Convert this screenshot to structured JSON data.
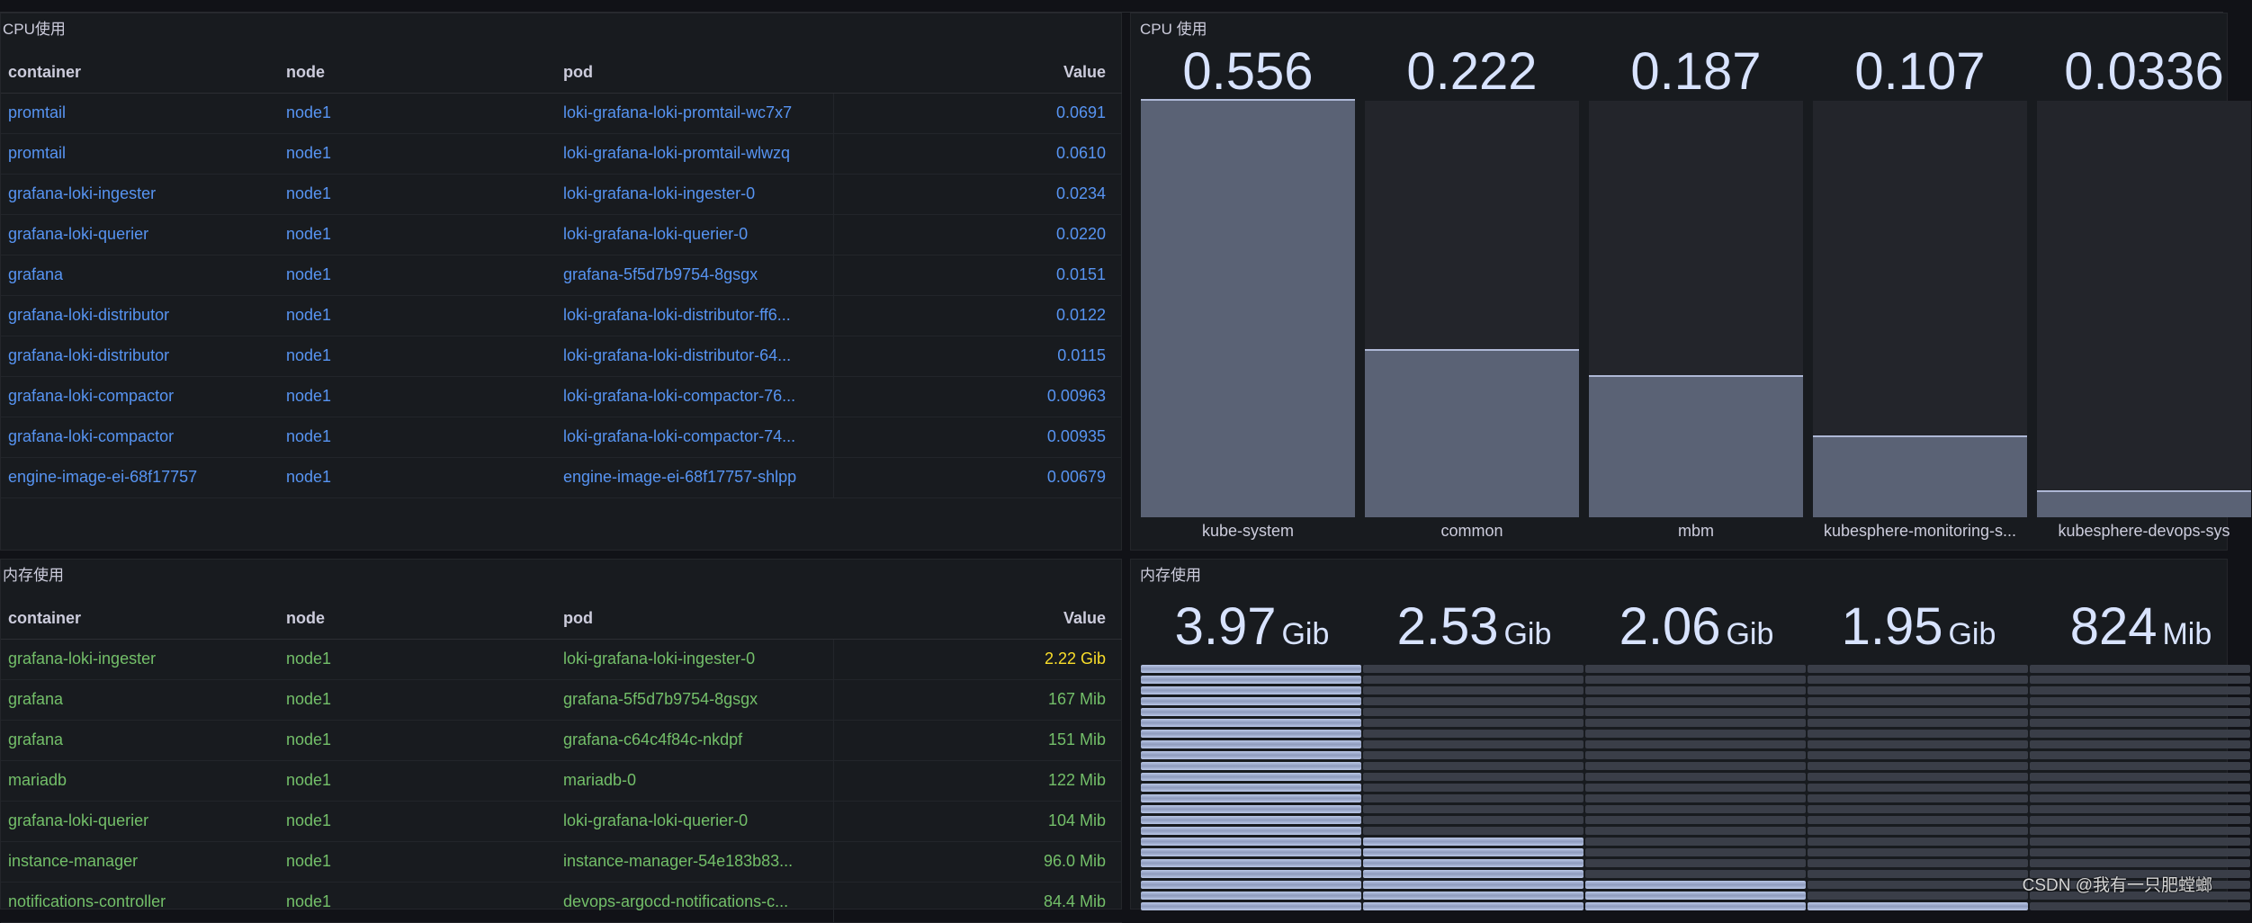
{
  "cpu_table": {
    "title": "CPU使用",
    "columns": [
      "container",
      "node",
      "pod",
      "Value"
    ],
    "rows": [
      {
        "container": "promtail",
        "node": "node1",
        "pod": "loki-grafana-loki-promtail-wc7x7",
        "value": "0.0691"
      },
      {
        "container": "promtail",
        "node": "node1",
        "pod": "loki-grafana-loki-promtail-wlwzq",
        "value": "0.0610"
      },
      {
        "container": "grafana-loki-ingester",
        "node": "node1",
        "pod": "loki-grafana-loki-ingester-0",
        "value": "0.0234"
      },
      {
        "container": "grafana-loki-querier",
        "node": "node1",
        "pod": "loki-grafana-loki-querier-0",
        "value": "0.0220"
      },
      {
        "container": "grafana",
        "node": "node1",
        "pod": "grafana-5f5d7b9754-8gsgx",
        "value": "0.0151"
      },
      {
        "container": "grafana-loki-distributor",
        "node": "node1",
        "pod": "loki-grafana-loki-distributor-ff6...",
        "value": "0.0122"
      },
      {
        "container": "grafana-loki-distributor",
        "node": "node1",
        "pod": "loki-grafana-loki-distributor-64...",
        "value": "0.0115"
      },
      {
        "container": "grafana-loki-compactor",
        "node": "node1",
        "pod": "loki-grafana-loki-compactor-76...",
        "value": "0.00963"
      },
      {
        "container": "grafana-loki-compactor",
        "node": "node1",
        "pod": "loki-grafana-loki-compactor-74...",
        "value": "0.00935"
      },
      {
        "container": "engine-image-ei-68f17757",
        "node": "node1",
        "pod": "engine-image-ei-68f17757-shlpp",
        "value": "0.00679"
      }
    ]
  },
  "cpu_bargauge": {
    "title": "CPU 使用",
    "items": [
      {
        "name": "kube-system",
        "display": "0.556",
        "value": 0.556
      },
      {
        "name": "common",
        "display": "0.222",
        "value": 0.222
      },
      {
        "name": "mbm",
        "display": "0.187",
        "value": 0.187
      },
      {
        "name": "kubesphere-monitoring-s...",
        "display": "0.107",
        "value": 0.107
      },
      {
        "name": "kubesphere-devops-sys",
        "display": "0.0336",
        "value": 0.0336
      }
    ]
  },
  "mem_table": {
    "title": "内存使用",
    "columns": [
      "container",
      "node",
      "pod",
      "Value"
    ],
    "rows": [
      {
        "container": "grafana-loki-ingester",
        "node": "node1",
        "pod": "loki-grafana-loki-ingester-0",
        "value": "2.22 Gib",
        "status": "warning"
      },
      {
        "container": "grafana",
        "node": "node1",
        "pod": "grafana-5f5d7b9754-8gsgx",
        "value": "167 Mib",
        "status": "ok"
      },
      {
        "container": "grafana",
        "node": "node1",
        "pod": "grafana-c64c4f84c-nkdpf",
        "value": "151 Mib",
        "status": "ok"
      },
      {
        "container": "mariadb",
        "node": "node1",
        "pod": "mariadb-0",
        "value": "122 Mib",
        "status": "ok"
      },
      {
        "container": "grafana-loki-querier",
        "node": "node1",
        "pod": "loki-grafana-loki-querier-0",
        "value": "104 Mib",
        "status": "ok"
      },
      {
        "container": "instance-manager",
        "node": "node1",
        "pod": "instance-manager-54e183b83...",
        "value": "96.0 Mib",
        "status": "ok"
      },
      {
        "container": "notifications-controller",
        "node": "node1",
        "pod": "devops-argocd-notifications-c...",
        "value": "84.4 Mib",
        "status": "ok"
      }
    ]
  },
  "mem_bargauge": {
    "title": "内存使用",
    "items": [
      {
        "number": "3.97",
        "unit": "Gib",
        "fraction": 1.0
      },
      {
        "number": "2.53",
        "unit": "Gib",
        "fraction": 0.3
      },
      {
        "number": "2.06",
        "unit": "Gib",
        "fraction": 0.12
      },
      {
        "number": "1.95",
        "unit": "Gib",
        "fraction": 0.06
      },
      {
        "number": "824",
        "unit": "Mib",
        "fraction": 0.0
      }
    ]
  },
  "colors": {
    "background": "#111217",
    "panel": "#181b1f",
    "blue_text": "#5794f2",
    "green_text": "#73bf69",
    "yellow_text": "#fade2a",
    "bar_fill": "#5a6275",
    "lcd_on": "#b9c6e6"
  },
  "watermark": "CSDN @我有一只肥螳螂"
}
